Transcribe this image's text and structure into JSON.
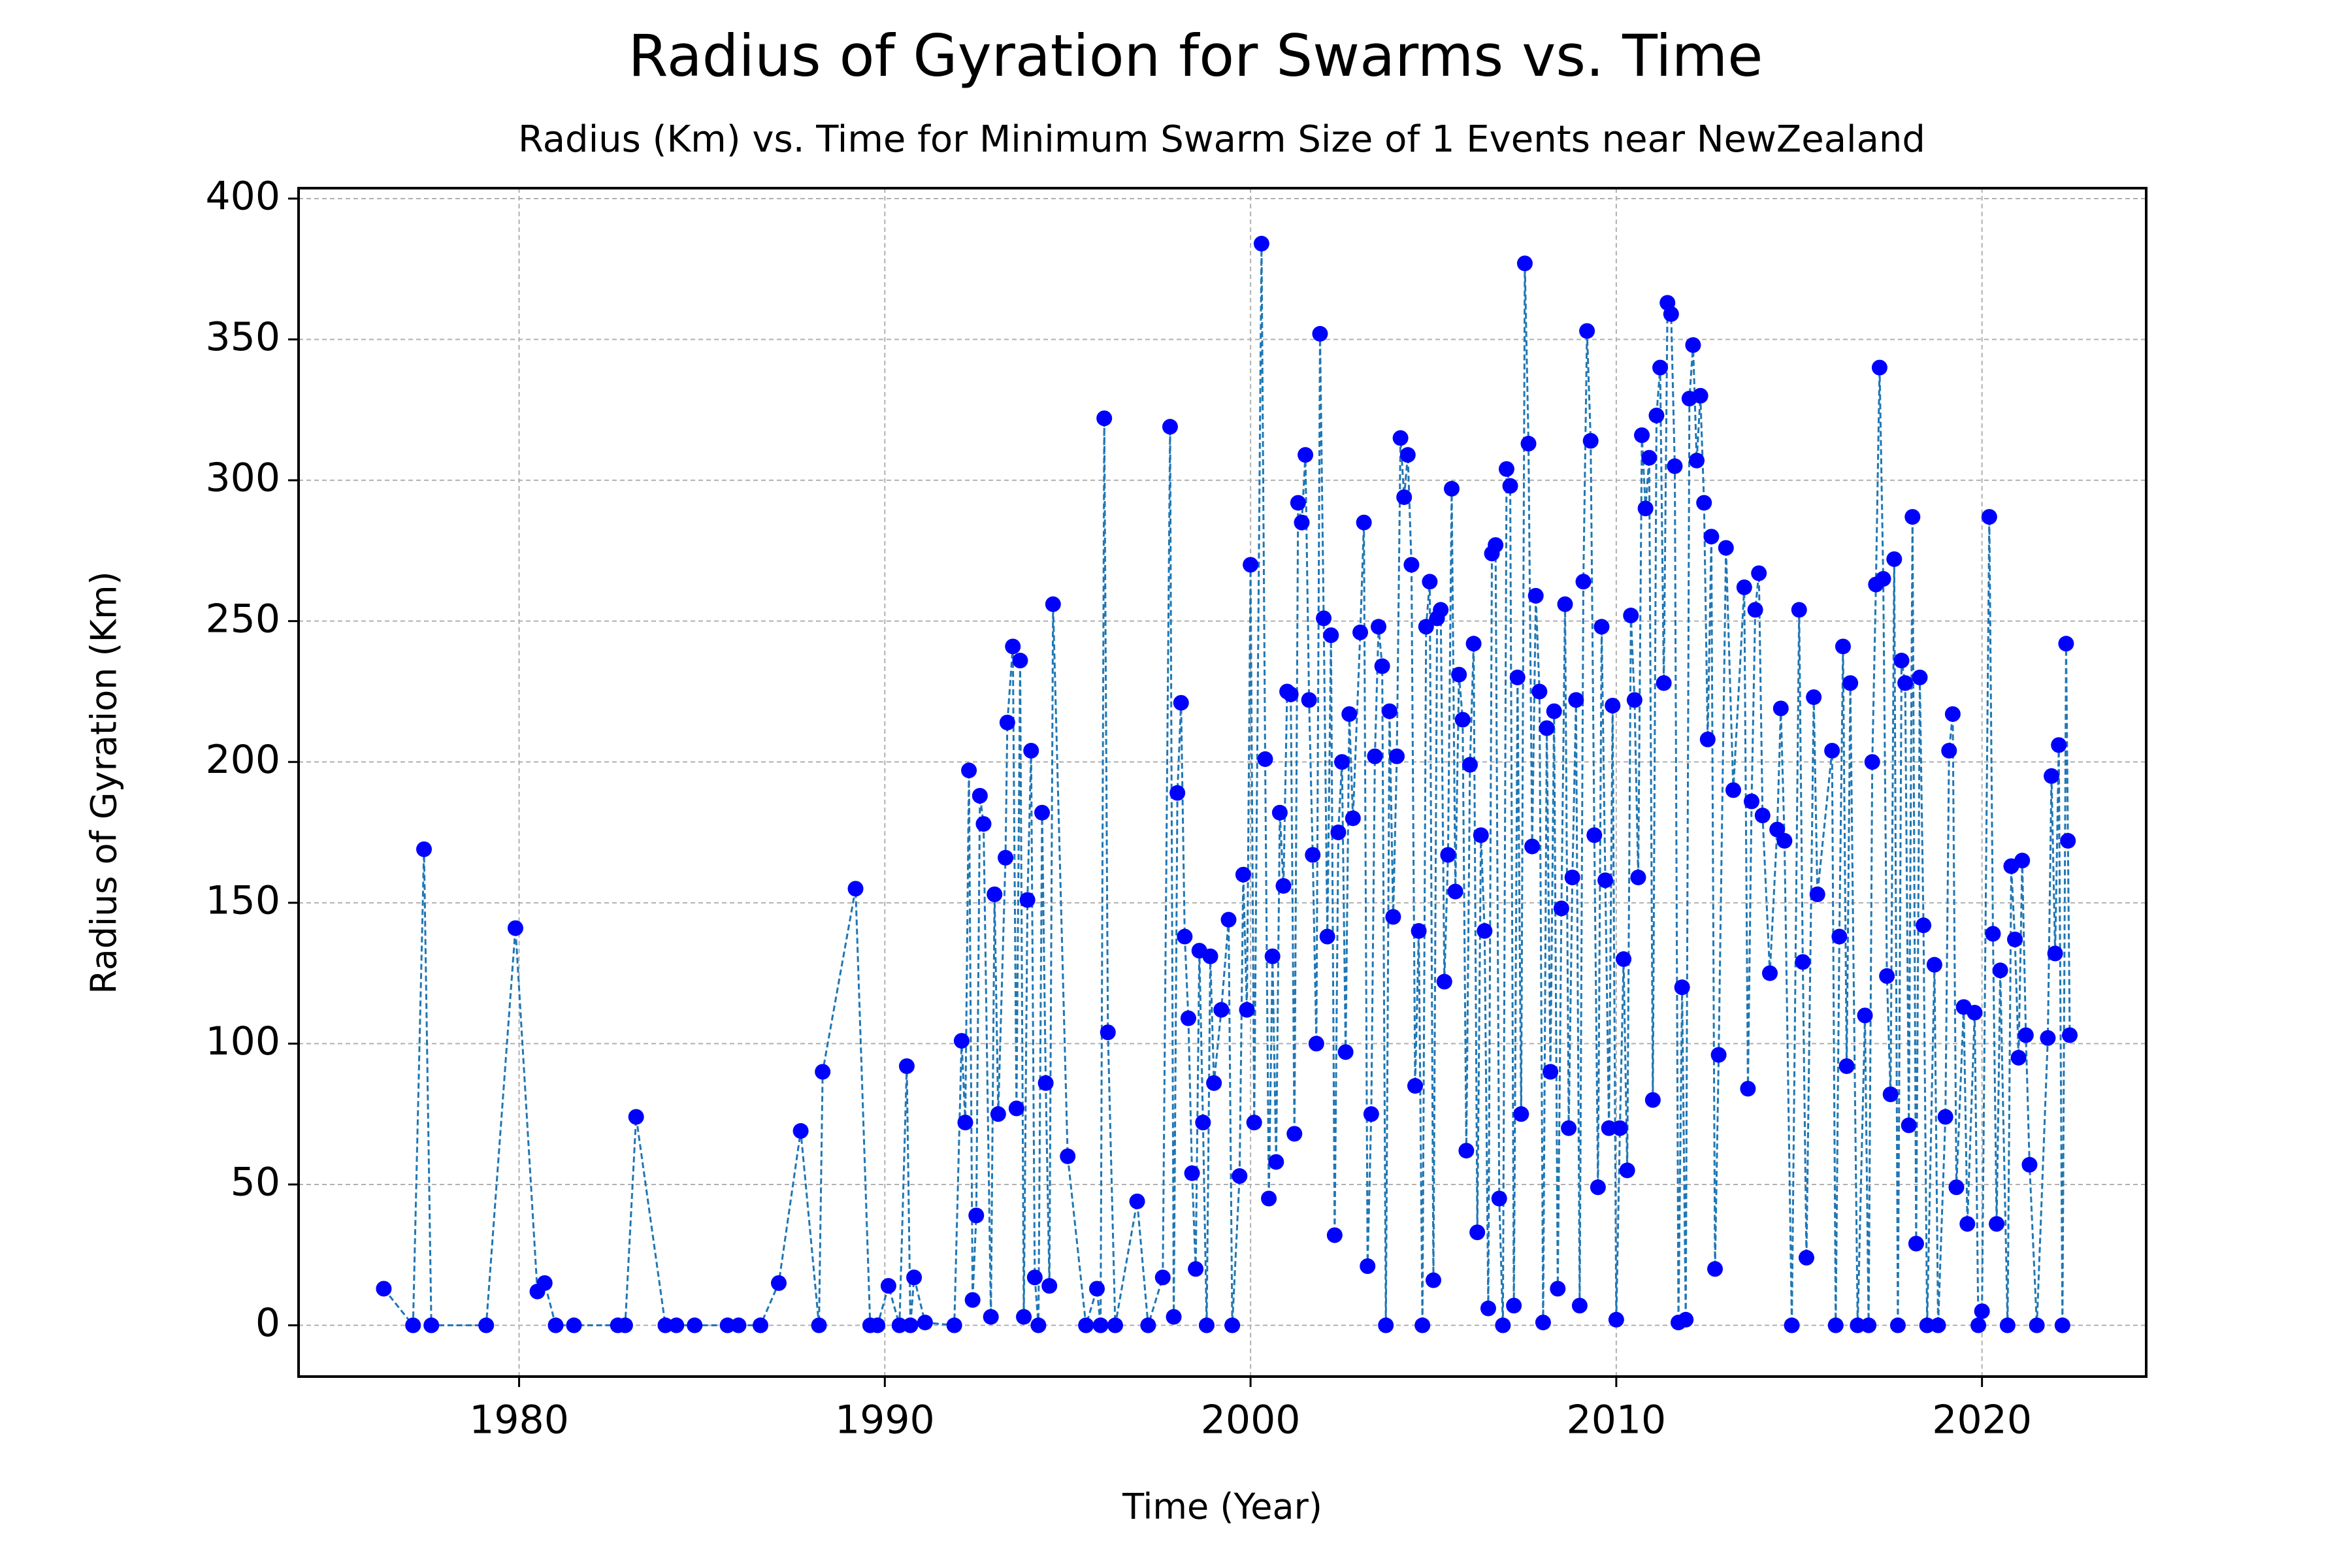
{
  "chart_data": {
    "type": "line",
    "title": "Radius of Gyration for Swarms vs. Time",
    "subtitle": "Radius (Km) vs. Time for Minimum Swarm Size of 1 Events near NewZealand",
    "x_label": "Time (Year)",
    "y_label": "Radius of Gyration (Km)",
    "line_color": "#1f77b4",
    "marker_color": "#0000ff",
    "grid": true,
    "xlim": [
      1973.97,
      2024.49
    ],
    "ylim": [
      -18.2,
      403.7
    ],
    "xticks": [
      1980,
      1990,
      2000,
      2010,
      2020
    ],
    "yticks": [
      0,
      50,
      100,
      150,
      200,
      250,
      300,
      350,
      400
    ],
    "x": [
      1976.3,
      1977.1,
      1977.4,
      1977.6,
      1979.1,
      1979.9,
      1980.5,
      1980.7,
      1981.0,
      1981.5,
      1982.7,
      1982.9,
      1983.2,
      1984.0,
      1984.3,
      1984.8,
      1985.7,
      1986.0,
      1986.6,
      1987.1,
      1987.7,
      1988.2,
      1988.3,
      1989.2,
      1989.6,
      1989.8,
      1990.1,
      1990.4,
      1990.6,
      1990.7,
      1990.8,
      1991.1,
      1991.9,
      1992.1,
      1992.2,
      1992.3,
      1992.4,
      1992.5,
      1992.6,
      1992.7,
      1992.9,
      1993.0,
      1993.1,
      1993.3,
      1993.35,
      1993.5,
      1993.6,
      1993.7,
      1993.8,
      1993.9,
      1994.0,
      1994.1,
      1994.2,
      1994.3,
      1994.4,
      1994.5,
      1994.6,
      1995.0,
      1995.5,
      1995.8,
      1995.9,
      1996.0,
      1996.1,
      1996.3,
      1996.9,
      1997.2,
      1997.6,
      1997.8,
      1997.9,
      1998.0,
      1998.1,
      1998.2,
      1998.3,
      1998.4,
      1998.5,
      1998.6,
      1998.7,
      1998.8,
      1998.9,
      1999.0,
      1999.2,
      1999.4,
      1999.5,
      1999.7,
      1999.8,
      1999.9,
      2000.0,
      2000.1,
      2000.3,
      2000.4,
      2000.5,
      2000.6,
      2000.7,
      2000.8,
      2000.9,
      2001.0,
      2001.1,
      2001.2,
      2001.3,
      2001.4,
      2001.5,
      2001.6,
      2001.7,
      2001.8,
      2001.9,
      2002.0,
      2002.1,
      2002.2,
      2002.3,
      2002.4,
      2002.5,
      2002.6,
      2002.7,
      2002.8,
      2003.0,
      2003.1,
      2003.2,
      2003.3,
      2003.4,
      2003.5,
      2003.6,
      2003.7,
      2003.8,
      2003.9,
      2004.0,
      2004.1,
      2004.2,
      2004.3,
      2004.4,
      2004.5,
      2004.6,
      2004.7,
      2004.8,
      2004.9,
      2005.0,
      2005.1,
      2005.2,
      2005.3,
      2005.4,
      2005.5,
      2005.6,
      2005.7,
      2005.8,
      2005.9,
      2006.0,
      2006.1,
      2006.2,
      2006.3,
      2006.4,
      2006.5,
      2006.6,
      2006.7,
      2006.8,
      2006.9,
      2007.0,
      2007.1,
      2007.2,
      2007.3,
      2007.4,
      2007.5,
      2007.6,
      2007.7,
      2007.8,
      2007.9,
      2008.0,
      2008.1,
      2008.2,
      2008.3,
      2008.4,
      2008.5,
      2008.6,
      2008.7,
      2008.8,
      2008.9,
      2009.0,
      2009.1,
      2009.2,
      2009.3,
      2009.4,
      2009.5,
      2009.6,
      2009.7,
      2009.8,
      2009.9,
      2010.0,
      2010.1,
      2010.2,
      2010.3,
      2010.4,
      2010.5,
      2010.6,
      2010.7,
      2010.8,
      2010.9,
      2011.0,
      2011.1,
      2011.2,
      2011.3,
      2011.4,
      2011.5,
      2011.6,
      2011.7,
      2011.8,
      2011.9,
      2012.0,
      2012.1,
      2012.2,
      2012.3,
      2012.4,
      2012.5,
      2012.6,
      2012.7,
      2012.8,
      2013.0,
      2013.2,
      2013.5,
      2013.6,
      2013.7,
      2013.8,
      2013.9,
      2014.0,
      2014.2,
      2014.4,
      2014.5,
      2014.6,
      2014.8,
      2015.0,
      2015.1,
      2015.2,
      2015.4,
      2015.5,
      2015.9,
      2016.0,
      2016.1,
      2016.2,
      2016.3,
      2016.4,
      2016.6,
      2016.8,
      2016.9,
      2017.0,
      2017.1,
      2017.2,
      2017.3,
      2017.4,
      2017.5,
      2017.6,
      2017.7,
      2017.8,
      2017.9,
      2018.0,
      2018.1,
      2018.2,
      2018.3,
      2018.4,
      2018.5,
      2018.7,
      2018.8,
      2019.0,
      2019.1,
      2019.2,
      2019.3,
      2019.5,
      2019.6,
      2019.8,
      2019.9,
      2020.0,
      2020.2,
      2020.3,
      2020.4,
      2020.5,
      2020.7,
      2020.8,
      2020.9,
      2021.0,
      2021.1,
      2021.2,
      2021.3,
      2021.5,
      2021.8,
      2021.9,
      2022.0,
      2022.1,
      2022.2,
      2022.3,
      2022.35,
      2022.4
    ],
    "values": [
      13,
      0,
      169,
      0,
      0,
      141,
      12,
      15,
      0,
      0,
      0,
      0,
      74,
      0,
      0,
      0,
      0,
      0,
      0,
      15,
      69,
      0,
      90,
      155,
      0,
      0,
      14,
      0,
      92,
      0,
      17,
      1,
      0,
      101,
      72,
      197,
      9,
      39,
      188,
      178,
      3,
      153,
      75,
      166,
      214,
      241,
      77,
      236,
      3,
      151,
      204,
      17,
      0,
      182,
      86,
      14,
      256,
      60,
      0,
      13,
      0,
      322,
      104,
      0,
      44,
      0,
      17,
      319,
      3,
      189,
      221,
      138,
      109,
      54,
      20,
      133,
      72,
      0,
      131,
      86,
      112,
      144,
      0,
      53,
      160,
      112,
      270,
      72,
      384,
      201,
      45,
      131,
      58,
      182,
      156,
      225,
      224,
      68,
      292,
      285,
      309,
      222,
      167,
      100,
      352,
      251,
      138,
      245,
      32,
      175,
      200,
      97,
      217,
      180,
      246,
      285,
      21,
      75,
      202,
      248,
      234,
      0,
      218,
      145,
      202,
      315,
      294,
      309,
      270,
      85,
      140,
      0,
      248,
      264,
      16,
      251,
      254,
      122,
      167,
      297,
      154,
      231,
      215,
      62,
      199,
      242,
      33,
      174,
      140,
      6,
      274,
      277,
      45,
      0,
      304,
      298,
      7,
      230,
      75,
      377,
      313,
      170,
      259,
      225,
      1,
      212,
      90,
      218,
      13,
      148,
      256,
      70,
      159,
      222,
      7,
      264,
      353,
      314,
      174,
      49,
      248,
      158,
      70,
      220,
      2,
      70,
      130,
      55,
      252,
      222,
      159,
      316,
      290,
      308,
      80,
      323,
      340,
      228,
      363,
      359,
      305,
      1,
      120,
      2,
      329,
      348,
      307,
      330,
      292,
      208,
      280,
      20,
      96,
      276,
      190,
      262,
      84,
      186,
      254,
      267,
      181,
      125,
      176,
      219,
      172,
      0,
      254,
      129,
      24,
      223,
      153,
      204,
      0,
      138,
      241,
      92,
      228,
      0,
      110,
      0,
      200,
      263,
      340,
      265,
      124,
      82,
      272,
      0,
      236,
      228,
      71,
      287,
      29,
      230,
      142,
      0,
      128,
      0,
      74,
      204,
      217,
      49,
      113,
      36,
      111,
      0,
      5,
      287,
      139,
      36,
      126,
      0,
      163,
      137,
      95,
      165,
      103,
      57,
      0,
      102,
      195,
      132,
      206,
      0,
      242,
      172,
      103
    ]
  }
}
